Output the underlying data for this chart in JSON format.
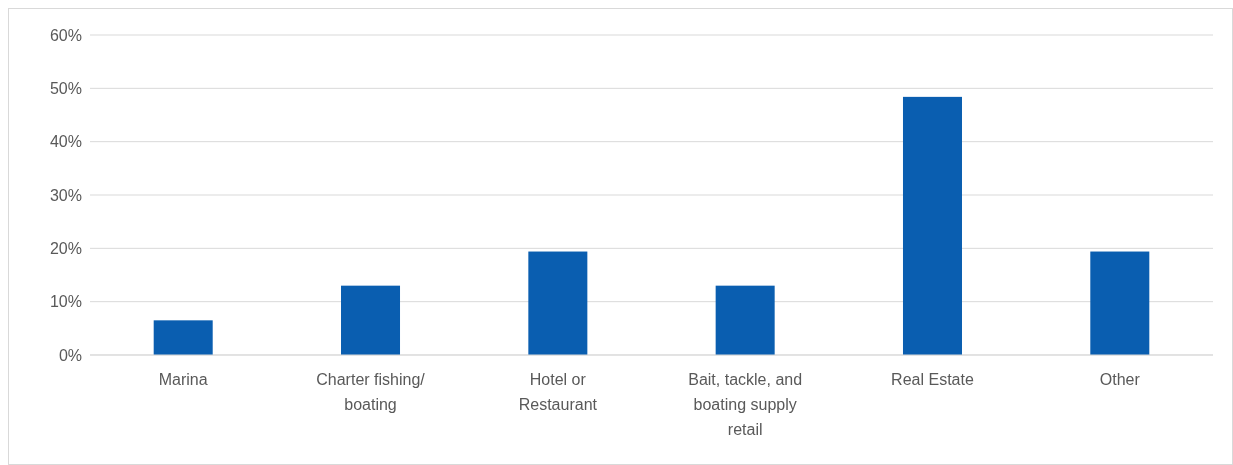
{
  "chart_data": {
    "type": "bar",
    "categories": [
      "Marina",
      "Charter fishing/ boating",
      "Hotel or Restaurant",
      "Bait, tackle, and boating supply retail",
      "Real Estate",
      "Other"
    ],
    "values": [
      6.5,
      13,
      19.4,
      13,
      48.4,
      19.4
    ],
    "color": "#0a5eb0",
    "ylim": [
      0,
      60
    ],
    "yticks": [
      {
        "value": 0,
        "label": "0%"
      },
      {
        "value": 10,
        "label": "10%"
      },
      {
        "value": 20,
        "label": "20%"
      },
      {
        "value": 30,
        "label": "30%"
      },
      {
        "value": 40,
        "label": "40%"
      },
      {
        "value": 50,
        "label": "50%"
      },
      {
        "value": 60,
        "label": "60%"
      }
    ],
    "grid": "y"
  }
}
